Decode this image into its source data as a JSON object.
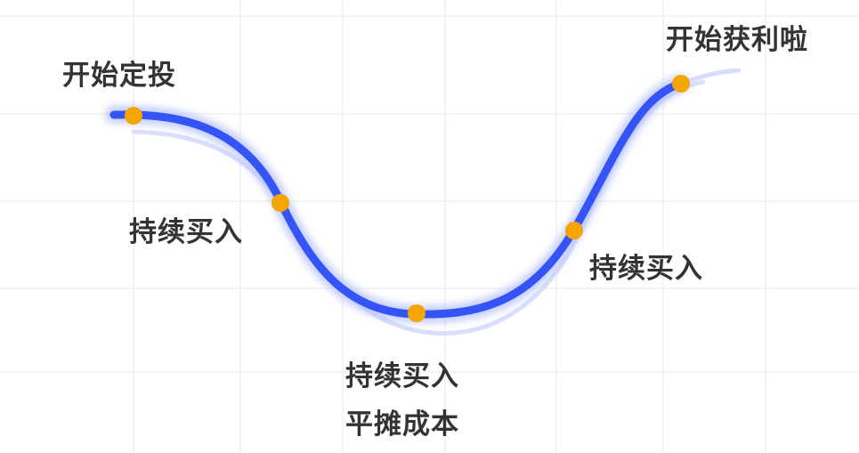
{
  "labels": {
    "start": "开始定投",
    "buy_1": "持续买入",
    "buy_2": "持续买入",
    "buy_3": "持续买入",
    "average_cost": "平摊成本",
    "profit": "开始获利啦"
  },
  "colors": {
    "curve": "#3554f5",
    "curve_glow": "#b9c4fb",
    "curve_shadow": "#d5dcfc",
    "point": "#f5a500",
    "grid": "#eef0f4",
    "label_text": "#333333",
    "background": "#ffffff"
  }
}
